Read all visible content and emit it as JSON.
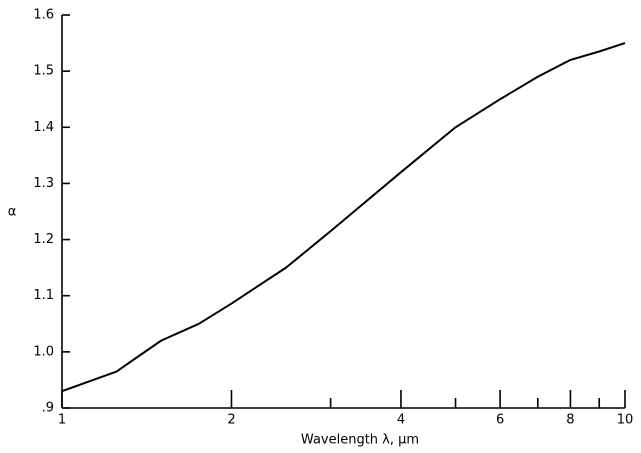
{
  "chart_data": {
    "type": "line",
    "x_label": "Wavelength  λ,  μm",
    "y_label": "α",
    "x": [
      1,
      1.25,
      1.5,
      1.75,
      2,
      2.5,
      3,
      4,
      5,
      6,
      7,
      8,
      9,
      10
    ],
    "series": [
      {
        "color": "#000000",
        "values": [
          0.93,
          0.965,
          1.02,
          1.05,
          1.086,
          1.15,
          1.215,
          1.32,
          1.4,
          1.45,
          1.49,
          1.52,
          1.535,
          1.55
        ]
      }
    ],
    "xscale": "log",
    "xlim": [
      1,
      10
    ],
    "xticks": [
      1,
      2,
      4,
      6,
      8,
      10
    ],
    "xminorticks": [
      3,
      5,
      7,
      9
    ],
    "ylim": [
      0.9,
      1.6
    ],
    "yticks": [
      {
        "value": 0.9,
        "label": ".9"
      },
      {
        "value": 1.0,
        "label": "1.0"
      },
      1.1,
      1.2,
      1.3,
      1.4,
      1.5,
      1.6
    ],
    "grid": false
  }
}
